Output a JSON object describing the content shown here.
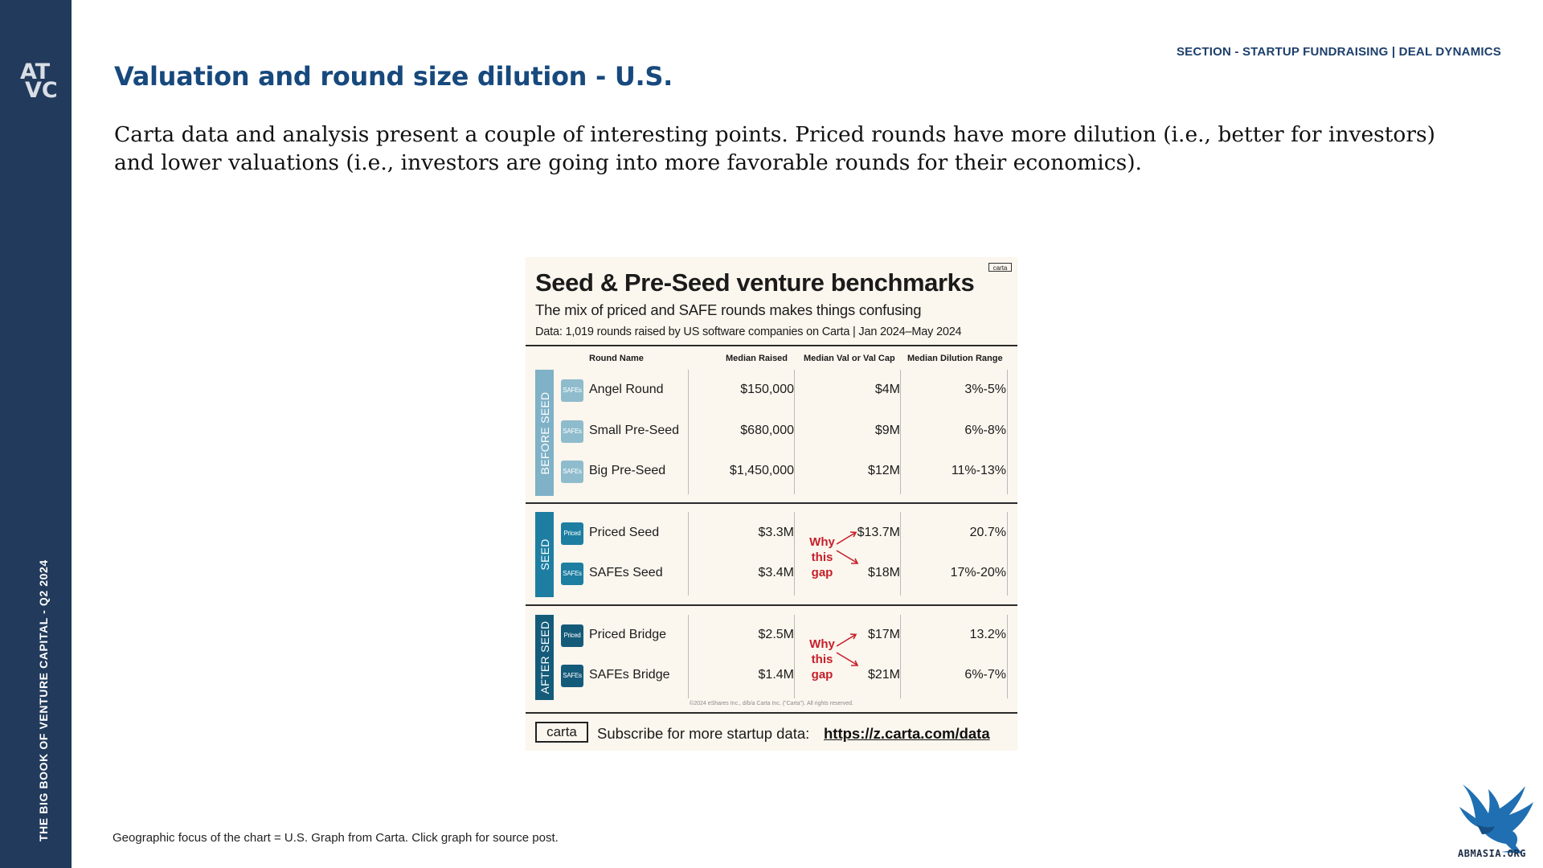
{
  "sidebar": {
    "logo_line1": "AT",
    "logo_line2": "VC",
    "vertical_text": "THE BIG BOOK OF VENTURE CAPITAL - Q2 2024"
  },
  "header": {
    "section_label": "SECTION - STARTUP FUNDRAISING | DEAL DYNAMICS",
    "title": "Valuation and round size dilution - U.S.",
    "intro": "Carta data and analysis present a couple of interesting points. Priced rounds have more dilution (i.e., better for investors) and lower valuations (i.e., investors are going into more favorable rounds for their economics)."
  },
  "infographic": {
    "brand": "carta",
    "title": "Seed & Pre-Seed venture benchmarks",
    "subtitle": "The mix of priced and SAFE rounds makes things confusing",
    "source": "Data: 1,019 rounds raised by US software companies on Carta | Jan 2024–May 2024",
    "columns": [
      "Round Name",
      "Median Raised",
      "Median Val or Val Cap",
      "Median Dilution Range"
    ],
    "groups": [
      {
        "label": "BEFORE SEED",
        "color": "#7fb1c7",
        "rows": [
          {
            "badge": "SAFEs",
            "name": "Angel Round",
            "raised": "$150,000",
            "valuation": "$4M",
            "dilution": "3%-5%"
          },
          {
            "badge": "SAFEs",
            "name": "Small Pre-Seed",
            "raised": "$680,000",
            "valuation": "$9M",
            "dilution": "6%-8%"
          },
          {
            "badge": "SAFEs",
            "name": "Big Pre-Seed",
            "raised": "$1,450,000",
            "valuation": "$12M",
            "dilution": "11%-13%"
          }
        ]
      },
      {
        "label": "SEED",
        "color": "#1d7ea2",
        "annotation": [
          "Why",
          "this",
          "gap"
        ],
        "rows": [
          {
            "badge": "Priced",
            "name": "Priced Seed",
            "raised": "$3.3M",
            "valuation": "$13.7M",
            "dilution": "20.7%"
          },
          {
            "badge": "SAFEs",
            "name": "SAFEs Seed",
            "raised": "$3.4M",
            "valuation": "$18M",
            "dilution": "17%-20%"
          }
        ]
      },
      {
        "label": "AFTER SEED",
        "color": "#145b7a",
        "annotation": [
          "Why",
          "this",
          "gap"
        ],
        "rows": [
          {
            "badge": "Priced",
            "name": "Priced Bridge",
            "raised": "$2.5M",
            "valuation": "$17M",
            "dilution": "13.2%"
          },
          {
            "badge": "SAFEs",
            "name": "SAFEs Bridge",
            "raised": "$1.4M",
            "valuation": "$21M",
            "dilution": "6%-7%"
          }
        ]
      }
    ],
    "copyright": "©2024 eShares Inc., d/b/a Carta Inc. (\"Carta\"). All rights reserved.",
    "footer_logo": "carta",
    "footer_text": "Subscribe for more startup data:",
    "footer_link": "https://z.carta.com/data"
  },
  "footnote": "Geographic focus of the chart = U.S. Graph from Carta. Click graph for source post.",
  "watermark": {
    "text": "ABMASIA.ORG",
    "icon": "eagle-logo-icon"
  }
}
